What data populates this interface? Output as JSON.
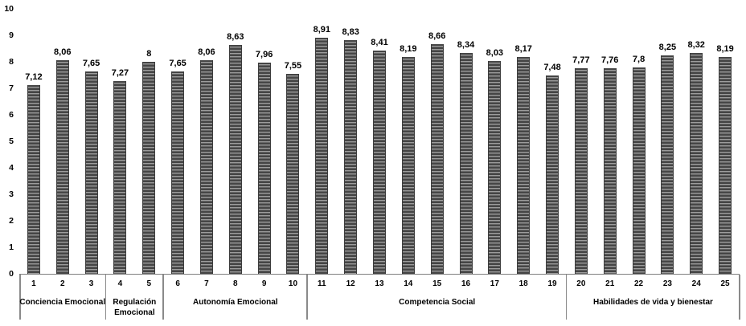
{
  "chart_data": {
    "type": "bar",
    "title": "",
    "xlabel": "",
    "ylabel": "",
    "x": [
      1,
      2,
      3,
      4,
      5,
      6,
      7,
      8,
      9,
      10,
      11,
      12,
      13,
      14,
      15,
      16,
      17,
      18,
      19,
      20,
      21,
      22,
      23,
      24,
      25
    ],
    "values": [
      7.12,
      8.06,
      7.65,
      7.27,
      8,
      7.65,
      8.06,
      8.63,
      7.96,
      7.55,
      8.91,
      8.83,
      8.41,
      8.19,
      8.66,
      8.34,
      8.03,
      8.17,
      7.48,
      7.77,
      7.76,
      7.8,
      8.25,
      8.32,
      8.19
    ],
    "value_labels": [
      "7,12",
      "8,06",
      "7,65",
      "7,27",
      "8",
      "7,65",
      "8,06",
      "8,63",
      "7,96",
      "7,55",
      "8,91",
      "8,83",
      "8,41",
      "8,19",
      "8,66",
      "8,34",
      "8,03",
      "8,17",
      "7,48",
      "7,77",
      "7,76",
      "7,8",
      "8,25",
      "8,32",
      "8,19"
    ],
    "ylim": [
      0,
      10
    ],
    "yticks": [
      "0",
      "1",
      "2",
      "3",
      "4",
      "5",
      "6",
      "7",
      "8",
      "9",
      "10"
    ],
    "grid": false,
    "legend": null,
    "groups": [
      {
        "label": "Conciencia Emocional",
        "lines": [
          "Conciencia Emocional"
        ],
        "from": 1,
        "to": 3
      },
      {
        "label": "Regulación Emocional",
        "lines": [
          "Regulación",
          "Emocional"
        ],
        "from": 4,
        "to": 5
      },
      {
        "label": "Autonomía Emocional",
        "lines": [
          "Autonomía Emocional"
        ],
        "from": 6,
        "to": 10
      },
      {
        "label": "Competencia Social",
        "lines": [
          "Competencia Social"
        ],
        "from": 11,
        "to": 19
      },
      {
        "label": "Habilidades de vida y bienestar",
        "lines": [
          "Habilidades de vida y bienestar"
        ],
        "from": 20,
        "to": 25
      }
    ],
    "colors": {
      "bar_stripe_dark": "#454545",
      "bar_stripe_light": "#9d9d9d",
      "axis_line": "#7f7f7f",
      "separator": "#8a8a8a",
      "text": "#000000",
      "background": "#ffffff"
    }
  }
}
